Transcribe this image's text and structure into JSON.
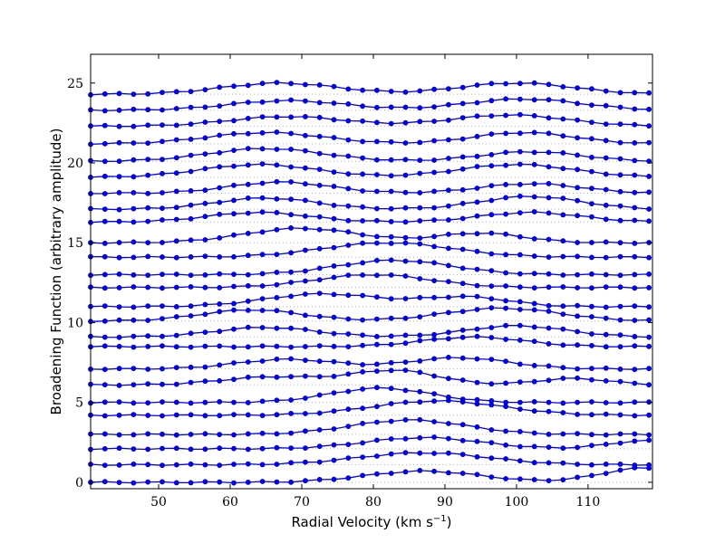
{
  "chart_data": {
    "type": "line",
    "title": "",
    "xlabel": "Radial Velocity (km s",
    "xlabel_superscript": "−1",
    "xlabel_close": ")",
    "ylabel": "Broadening Function (arbitrary amplitude)",
    "xlim": [
      40.5,
      119
    ],
    "ylim": [
      -0.4,
      26.8
    ],
    "xticks": [
      50,
      60,
      70,
      80,
      90,
      100,
      110
    ],
    "xtick_labels": [
      "50",
      "60",
      "70",
      "80",
      "90",
      "100",
      "110"
    ],
    "yticks": [
      0,
      5,
      10,
      15,
      20,
      25
    ],
    "ytick_labels": [
      "0",
      "5",
      "10",
      "15",
      "20",
      "25"
    ],
    "grid": "dotted horizontal baseline per series",
    "marker": "circle",
    "color": "#0000ff",
    "x_start": 40.5,
    "x_step": 2,
    "x_count": 40,
    "series": [
      {
        "baseline": 0.0,
        "peaks": [
          [
            87,
            0.7,
            8
          ],
          [
            118,
            0.9,
            6
          ]
        ]
      },
      {
        "baseline": 1.1,
        "peaks": [
          [
            87,
            0.75,
            9
          ]
        ]
      },
      {
        "baseline": 2.1,
        "peaks": [
          [
            87,
            0.7,
            8
          ],
          [
            118,
            0.5,
            5
          ]
        ]
      },
      {
        "baseline": 3.0,
        "peaks": [
          [
            85,
            0.9,
            8
          ]
        ]
      },
      {
        "baseline": 4.2,
        "peaks": [
          [
            89,
            0.9,
            9
          ]
        ]
      },
      {
        "baseline": 5.0,
        "peaks": [
          [
            81,
            0.9,
            7
          ]
        ]
      },
      {
        "baseline": 6.1,
        "peaks": [
          [
            66,
            0.5,
            7
          ],
          [
            83,
            0.9,
            6
          ],
          [
            108,
            0.4,
            5
          ]
        ]
      },
      {
        "baseline": 7.1,
        "peaks": [
          [
            68,
            0.6,
            7
          ],
          [
            92,
            0.7,
            7
          ]
        ]
      },
      {
        "baseline": 8.5,
        "peaks": [
          [
            94,
            0.6,
            7
          ]
        ]
      },
      {
        "baseline": 9.1,
        "peaks": [
          [
            65,
            0.6,
            7
          ],
          [
            100,
            0.7,
            7
          ]
        ]
      },
      {
        "baseline": 10.1,
        "peaks": [
          [
            63,
            0.7,
            7
          ],
          [
            98,
            0.8,
            8
          ]
        ]
      },
      {
        "baseline": 11.0,
        "peaks": [
          [
            73,
            0.8,
            8
          ],
          [
            93,
            0.6,
            6
          ]
        ]
      },
      {
        "baseline": 12.2,
        "peaks": [
          [
            80,
            0.8,
            8
          ]
        ]
      },
      {
        "baseline": 13.0,
        "peaks": [
          [
            83,
            0.9,
            8
          ]
        ]
      },
      {
        "baseline": 14.1,
        "peaks": [
          [
            82,
            0.9,
            9
          ]
        ]
      },
      {
        "baseline": 15.0,
        "peaks": [
          [
            70,
            0.9,
            8
          ],
          [
            95,
            0.6,
            6
          ]
        ]
      },
      {
        "baseline": 16.3,
        "peaks": [
          [
            64,
            0.6,
            7
          ],
          [
            102,
            0.6,
            7
          ]
        ]
      },
      {
        "baseline": 17.1,
        "peaks": [
          [
            65,
            0.7,
            7
          ],
          [
            102,
            0.8,
            7
          ]
        ]
      },
      {
        "baseline": 18.1,
        "peaks": [
          [
            67,
            0.7,
            7
          ],
          [
            102,
            0.6,
            7
          ]
        ]
      },
      {
        "baseline": 19.1,
        "peaks": [
          [
            64,
            0.8,
            8
          ],
          [
            100,
            0.8,
            8
          ]
        ]
      },
      {
        "baseline": 20.1,
        "peaks": [
          [
            65,
            0.8,
            8
          ],
          [
            102,
            0.6,
            7
          ]
        ]
      },
      {
        "baseline": 21.2,
        "peaks": [
          [
            65,
            0.7,
            8
          ],
          [
            101,
            0.7,
            7
          ]
        ]
      },
      {
        "baseline": 22.3,
        "peaks": [
          [
            68,
            0.6,
            8
          ],
          [
            99,
            0.7,
            8
          ]
        ]
      },
      {
        "baseline": 23.3,
        "peaks": [
          [
            68,
            0.6,
            8
          ],
          [
            101,
            0.7,
            8
          ]
        ]
      },
      {
        "baseline": 24.3,
        "peaks": [
          [
            67,
            0.7,
            8
          ],
          [
            100,
            0.7,
            8
          ]
        ]
      }
    ]
  }
}
